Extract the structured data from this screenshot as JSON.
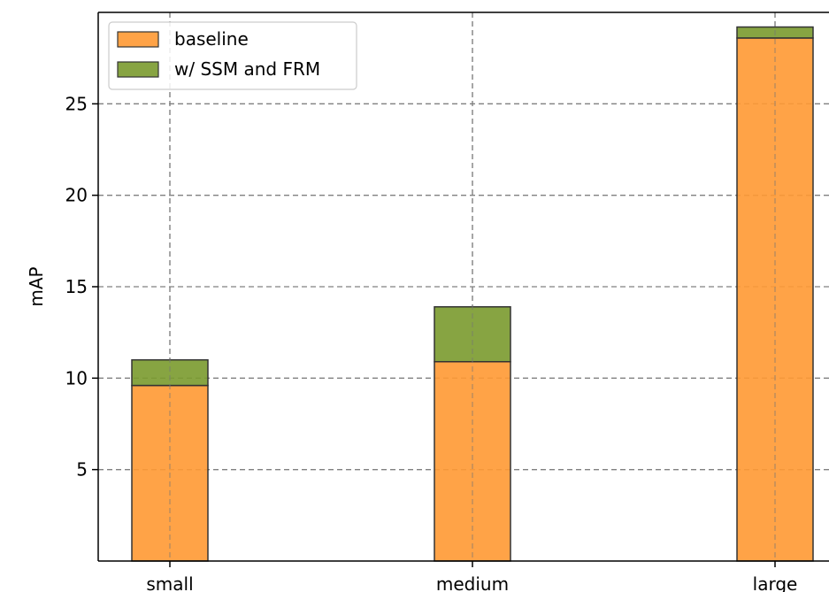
{
  "chart_data": {
    "type": "bar",
    "stacked": true,
    "categories": [
      "small",
      "medium",
      "large"
    ],
    "series": [
      {
        "name": "baseline",
        "values": [
          9.6,
          10.9,
          28.6
        ],
        "color": "#ff9933"
      },
      {
        "name": "w/ SSM and FRM",
        "values": [
          1.4,
          3.0,
          0.6
        ],
        "color": "#7a9a2e"
      }
    ],
    "xlabel": "",
    "ylabel": "mAP",
    "ylim": [
      0,
      30
    ],
    "yticks": [
      5,
      10,
      15,
      20,
      25
    ],
    "grid": true,
    "legend_position": "top-left"
  }
}
